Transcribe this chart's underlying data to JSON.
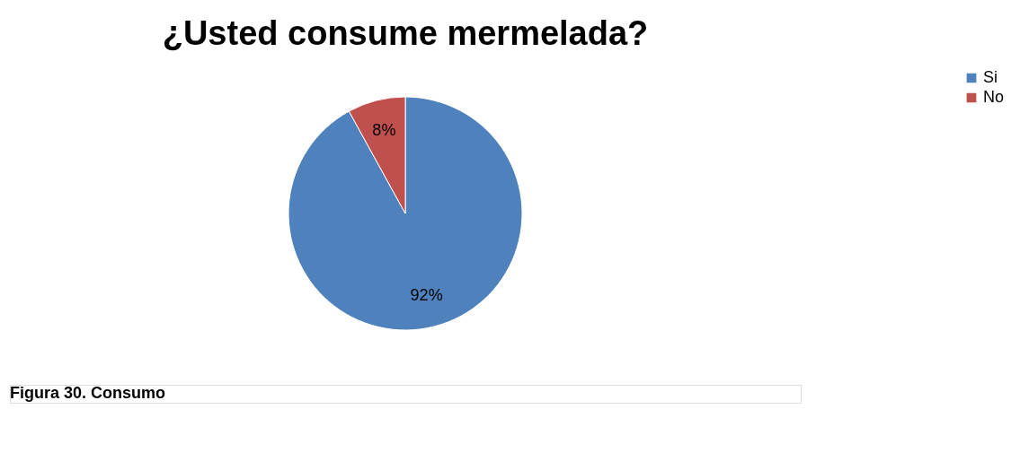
{
  "chart_data": {
    "type": "pie",
    "title": "¿Usted consume mermelada?",
    "categories": [
      "Si",
      "No"
    ],
    "values": [
      92,
      8
    ],
    "colors": [
      "#4f81bd",
      "#c0504d"
    ],
    "value_labels": [
      "92%",
      "8%"
    ],
    "legend": "right",
    "annotations": [
      "Figura 30. Consumo"
    ]
  }
}
